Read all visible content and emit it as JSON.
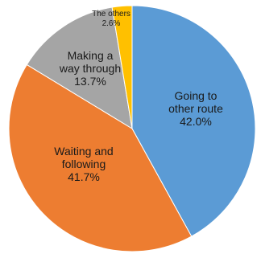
{
  "chart_data": {
    "type": "pie",
    "slices": [
      {
        "label_lines": [
          "Going to",
          "other route"
        ],
        "pct_label": "42.0%",
        "value": 42.0,
        "color": "#5b9bd5"
      },
      {
        "label_lines": [
          "Waiting and",
          "following"
        ],
        "pct_label": "41.7%",
        "value": 41.7,
        "color": "#ed7d31"
      },
      {
        "label_lines": [
          "Making a",
          "way through"
        ],
        "pct_label": "13.7%",
        "value": 13.7,
        "color": "#a5a5a5"
      },
      {
        "label_lines": [
          "The others"
        ],
        "pct_label": "2.6%",
        "value": 2.6,
        "color": "#ffc000"
      }
    ],
    "start_angle": "12 o'clock",
    "direction": "clockwise"
  }
}
